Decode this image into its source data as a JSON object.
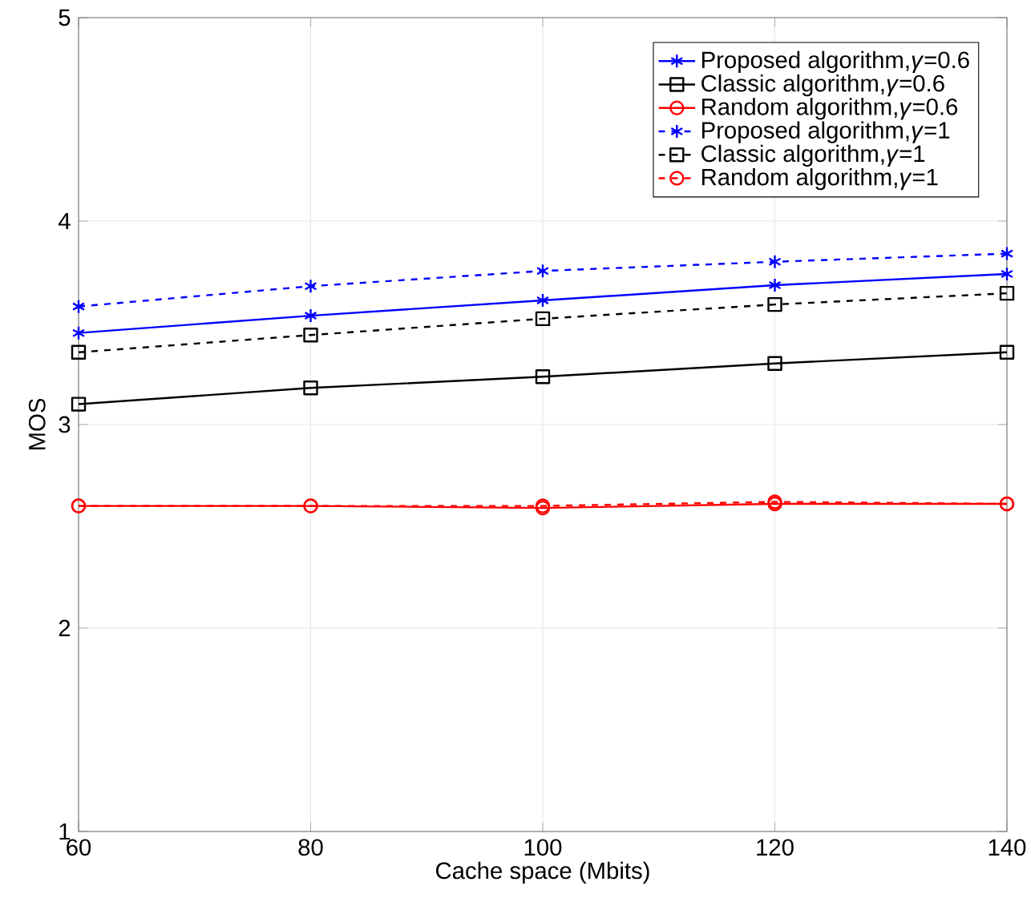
{
  "chart_data": {
    "type": "line",
    "xlabel": "Cache space (Mbits)",
    "ylabel": "MOS",
    "x": [
      60,
      80,
      100,
      120,
      140
    ],
    "xlim": [
      60,
      140
    ],
    "xticks": [
      60,
      80,
      100,
      120,
      140
    ],
    "ylim": [
      1,
      5
    ],
    "yticks": [
      1,
      2,
      3,
      4,
      5
    ],
    "grid": true,
    "legend": "top right",
    "series": [
      {
        "name": "Proposed algorithm,*γ*=0.6",
        "color": "#0000ff",
        "marker": "cross",
        "line_style": "solid",
        "values": [
          3.45,
          3.535,
          3.61,
          3.685,
          3.74
        ]
      },
      {
        "name": "Classic algorithm,*γ*=0.6",
        "color": "#000000",
        "marker": "square",
        "line_style": "solid",
        "values": [
          3.1,
          3.18,
          3.235,
          3.3,
          3.355
        ]
      },
      {
        "name": "Random algorithm,*γ*=0.6",
        "color": "#ff0000",
        "marker": "circle",
        "line_style": "solid",
        "values": [
          2.6,
          2.6,
          2.59,
          2.61,
          2.61
        ]
      },
      {
        "name": "Proposed algorithm,*γ*=1",
        "color": "#0000ff",
        "marker": "cross",
        "line_style": "dashed",
        "values": [
          3.58,
          3.68,
          3.755,
          3.8,
          3.84
        ]
      },
      {
        "name": "Classic algorithm,*γ*=1",
        "color": "#000000",
        "marker": "square",
        "line_style": "dashed",
        "values": [
          3.355,
          3.44,
          3.52,
          3.59,
          3.645
        ]
      },
      {
        "name": "Random algorithm,*γ*=1",
        "color": "#ff0000",
        "marker": "circle",
        "line_style": "dashed",
        "values": [
          2.6,
          2.6,
          2.6,
          2.62,
          2.61
        ]
      }
    ]
  }
}
